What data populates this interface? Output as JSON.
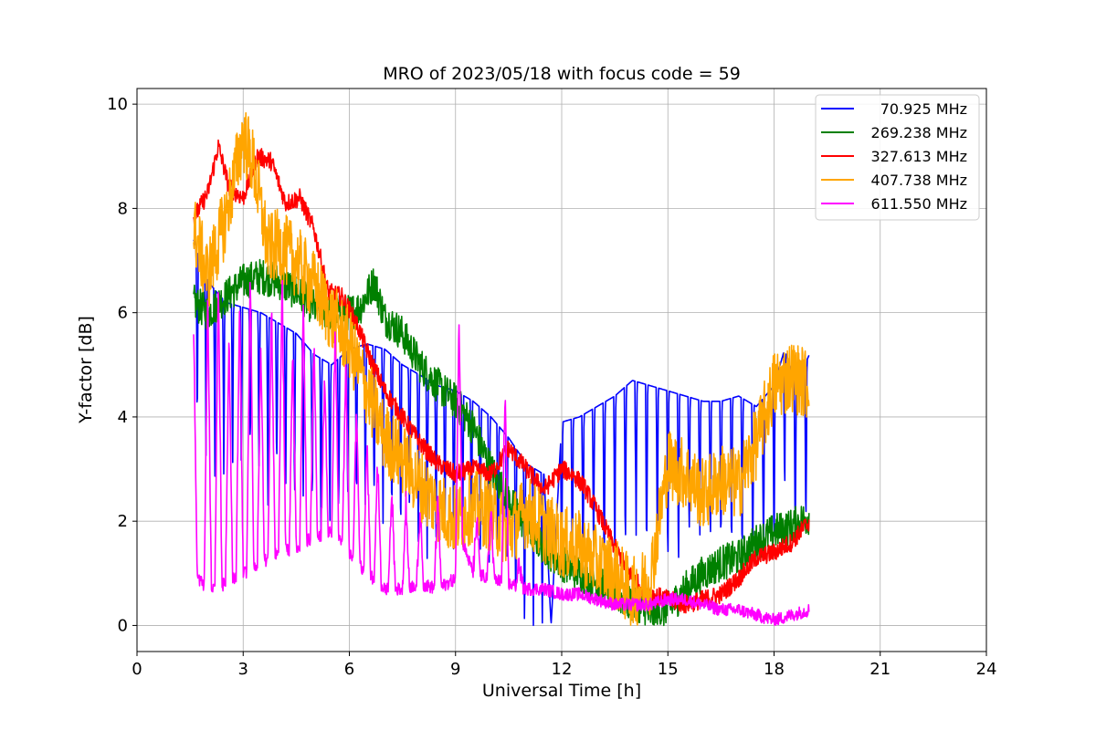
{
  "chart_data": {
    "type": "line",
    "title": "MRO of 2023/05/18 with focus code = 59",
    "xlabel": "Universal Time [h]",
    "ylabel": "Y-factor [dB]",
    "xlim": [
      0,
      24
    ],
    "ylim": [
      -0.5,
      10.3
    ],
    "xticks": [
      0,
      3,
      6,
      9,
      12,
      15,
      18,
      21,
      24
    ],
    "yticks": [
      0,
      2,
      4,
      6,
      8,
      10
    ],
    "grid": true,
    "legend_position": "top-right",
    "series": [
      {
        "name": "70.925 MHz",
        "color": "#0000ff",
        "x": [
          1.6,
          2.0,
          2.5,
          3.0,
          3.5,
          4.0,
          4.5,
          5.0,
          5.5,
          6.0,
          6.5,
          7.0,
          7.5,
          8.0,
          8.5,
          9.0,
          9.5,
          10.0,
          10.5,
          11.0,
          11.5,
          11.7,
          12.0,
          12.5,
          13.0,
          13.5,
          14.0,
          14.5,
          15.0,
          15.5,
          16.0,
          16.5,
          17.0,
          17.5,
          18.0,
          18.3,
          18.6,
          19.0
        ],
        "y": [
          7.4,
          6.6,
          6.2,
          6.1,
          6.0,
          5.8,
          5.6,
          5.2,
          5.0,
          5.3,
          5.4,
          5.3,
          5.0,
          4.8,
          4.6,
          4.5,
          4.3,
          4.0,
          3.6,
          3.1,
          2.9,
          0.0,
          3.9,
          4.0,
          4.2,
          4.4,
          4.7,
          4.6,
          4.5,
          4.4,
          4.3,
          4.3,
          4.4,
          4.2,
          4.6,
          5.3,
          4.6,
          5.2
        ],
        "dips": [
          1.7,
          1.95,
          2.2,
          2.45,
          2.7,
          2.95,
          3.2,
          3.45,
          3.7,
          3.95,
          4.2,
          4.45,
          4.7,
          4.95,
          5.2,
          5.45,
          5.7,
          5.95,
          6.2,
          6.45,
          6.7,
          6.95,
          7.2,
          7.45,
          7.7,
          7.95,
          8.2,
          8.45,
          8.7,
          8.95,
          9.2,
          9.45,
          9.7,
          9.95,
          10.2,
          10.45,
          10.7,
          10.95,
          11.2,
          11.45,
          12.0,
          12.3,
          12.6,
          12.9,
          13.2,
          13.5,
          13.8,
          14.1,
          14.4,
          14.7,
          15.0,
          15.3,
          15.6,
          15.9,
          16.2,
          16.5,
          16.8,
          17.1,
          17.4,
          17.7,
          18.0,
          18.3,
          18.6,
          18.9
        ],
        "dip_depth": 1.6
      },
      {
        "name": "269.238 MHz",
        "color": "#008000",
        "x": [
          1.6,
          2.0,
          2.5,
          3.0,
          3.5,
          4.0,
          4.5,
          5.0,
          5.5,
          6.0,
          6.3,
          6.7,
          7.0,
          7.5,
          8.0,
          8.5,
          9.0,
          9.5,
          10.0,
          10.5,
          11.0,
          11.5,
          12.0,
          12.5,
          13.0,
          13.5,
          14.0,
          14.5,
          15.0,
          15.5,
          16.0,
          16.5,
          17.0,
          17.5,
          18.0,
          18.5,
          19.0
        ],
        "y": [
          6.2,
          6.0,
          6.3,
          6.6,
          6.7,
          6.6,
          6.4,
          6.1,
          6.0,
          6.0,
          6.1,
          6.6,
          5.9,
          5.6,
          5.0,
          4.6,
          4.3,
          3.8,
          3.0,
          2.4,
          1.9,
          1.5,
          1.2,
          1.0,
          0.8,
          0.6,
          0.4,
          0.2,
          0.3,
          0.7,
          1.0,
          1.2,
          1.3,
          1.6,
          1.8,
          1.9,
          2.1
        ],
        "noise": 0.35
      },
      {
        "name": "327.613 MHz",
        "color": "#ff0000",
        "x": [
          1.6,
          2.0,
          2.3,
          2.6,
          3.0,
          3.4,
          3.8,
          4.2,
          4.6,
          5.0,
          5.4,
          5.8,
          6.2,
          6.6,
          7.0,
          7.5,
          8.0,
          8.5,
          9.0,
          9.5,
          10.0,
          10.5,
          11.0,
          11.5,
          12.0,
          12.3,
          12.6,
          13.0,
          13.5,
          14.0,
          14.5,
          15.0,
          15.5,
          16.0,
          16.5,
          17.0,
          17.5,
          18.0,
          18.5,
          19.0
        ],
        "y": [
          7.8,
          8.3,
          9.2,
          8.4,
          8.2,
          9.0,
          8.9,
          8.1,
          8.2,
          7.6,
          6.4,
          6.3,
          5.8,
          5.1,
          4.5,
          4.0,
          3.5,
          3.1,
          2.9,
          3.0,
          2.9,
          3.4,
          3.0,
          2.6,
          3.0,
          2.9,
          2.7,
          2.2,
          1.5,
          0.9,
          0.6,
          0.5,
          0.4,
          0.5,
          0.6,
          0.9,
          1.3,
          1.4,
          1.6,
          2.0
        ],
        "noise": 0.18
      },
      {
        "name": "407.738 MHz",
        "color": "#ffa500",
        "x": [
          1.6,
          2.0,
          2.5,
          3.0,
          3.3,
          3.7,
          4.0,
          4.5,
          5.0,
          5.5,
          6.0,
          6.5,
          7.0,
          7.5,
          8.0,
          8.5,
          9.0,
          9.5,
          10.0,
          10.5,
          11.0,
          11.5,
          12.0,
          12.5,
          13.0,
          13.5,
          14.0,
          14.5,
          15.0,
          15.5,
          16.0,
          16.5,
          17.0,
          17.5,
          18.0,
          18.5,
          19.0
        ],
        "y": [
          7.6,
          6.7,
          7.8,
          9.4,
          8.8,
          7.2,
          7.3,
          7.0,
          6.5,
          5.9,
          5.4,
          4.5,
          3.6,
          3.2,
          2.7,
          2.3,
          2.0,
          2.3,
          2.1,
          1.8,
          2.2,
          1.9,
          1.6,
          1.5,
          1.2,
          1.0,
          0.6,
          0.9,
          3.1,
          2.9,
          2.5,
          2.8,
          2.7,
          3.5,
          4.6,
          4.8,
          4.6
        ],
        "noise": 0.7
      },
      {
        "name": "611.550 MHz",
        "color": "#ff00ff",
        "x": [
          1.6,
          2.0,
          2.5,
          3.0,
          3.5,
          4.0,
          4.5,
          5.0,
          5.5,
          6.0,
          6.5,
          7.0,
          7.5,
          8.0,
          8.5,
          9.0,
          9.2,
          9.5,
          10.0,
          10.5,
          11.0,
          11.5,
          12.0,
          12.5,
          13.0,
          13.5,
          14.0,
          14.5,
          15.0,
          15.5,
          16.0,
          16.5,
          17.0,
          17.5,
          18.0,
          18.5,
          19.0
        ],
        "y": [
          1.0,
          0.7,
          0.8,
          1.0,
          1.2,
          1.4,
          1.5,
          1.7,
          1.8,
          1.4,
          1.0,
          0.7,
          0.7,
          0.8,
          0.7,
          0.9,
          1.6,
          1.0,
          0.9,
          0.8,
          0.7,
          0.7,
          0.6,
          0.6,
          0.5,
          0.4,
          0.4,
          0.4,
          0.5,
          0.5,
          0.4,
          0.3,
          0.3,
          0.2,
          0.1,
          0.2,
          0.3
        ],
        "spikes": [
          [
            1.6,
            5.8
          ],
          [
            2.0,
            6.4
          ],
          [
            2.3,
            6.6
          ],
          [
            2.6,
            5.6
          ],
          [
            2.9,
            6.2
          ],
          [
            3.2,
            6.8
          ],
          [
            3.5,
            5.4
          ],
          [
            3.8,
            6.2
          ],
          [
            4.1,
            6.8
          ],
          [
            4.4,
            5.3
          ],
          [
            4.7,
            6.2
          ],
          [
            5.0,
            5.4
          ],
          [
            5.3,
            4.8
          ],
          [
            5.6,
            5.8
          ],
          [
            5.9,
            5.0
          ],
          [
            6.2,
            4.2
          ],
          [
            6.5,
            3.5
          ],
          [
            6.8,
            3.2
          ],
          [
            7.2,
            2.6
          ],
          [
            7.6,
            2.3
          ],
          [
            8.0,
            2.2
          ],
          [
            8.5,
            2.4
          ],
          [
            9.1,
            5.9
          ],
          [
            9.6,
            2.0
          ],
          [
            10.0,
            2.2
          ],
          [
            10.4,
            4.5
          ],
          [
            10.8,
            1.2
          ]
        ]
      }
    ]
  }
}
